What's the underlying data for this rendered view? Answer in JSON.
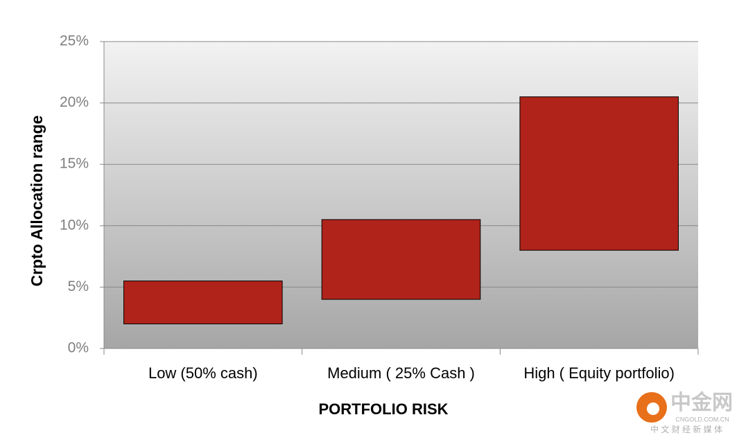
{
  "chart_data": {
    "type": "range-bar",
    "x_label": "PORTFOLIO RISK",
    "y_label": "Crpto Allocation range",
    "categories": [
      "Low (50% cash)",
      "Medium ( 25% Cash )",
      "High ( Equity portfolio)"
    ],
    "lows": [
      2,
      4,
      8
    ],
    "highs": [
      5.5,
      10.5,
      20.5
    ],
    "color": "#b0231a",
    "ylim": [
      0,
      25
    ],
    "yticks": [
      {
        "value": 0,
        "label": "0%"
      },
      {
        "value": 5,
        "label": "5%"
      },
      {
        "value": 10,
        "label": "10%"
      },
      {
        "value": 15,
        "label": "15%"
      },
      {
        "value": 20,
        "label": "20%"
      },
      {
        "value": 25,
        "label": "25%"
      }
    ],
    "grid": true
  },
  "watermark": {
    "name": "中金网",
    "url": "CNGOLD.COM.CN",
    "tagline": "中 文 财 经 新 媒 体"
  }
}
